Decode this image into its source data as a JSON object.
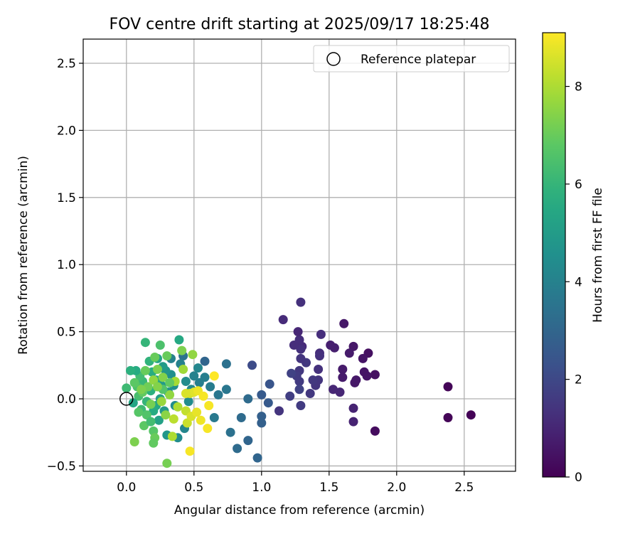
{
  "chart_data": {
    "type": "scatter",
    "title": "FOV centre drift starting at 2025/09/17 18:25:48",
    "xlabel": "Angular distance from reference (arcmin)",
    "ylabel": "Rotation from reference (arcmin)",
    "xlim": [
      -0.32,
      2.88
    ],
    "ylim": [
      -0.54,
      2.68
    ],
    "xticks": [
      "0.0",
      "0.5",
      "1.0",
      "1.5",
      "2.0",
      "2.5"
    ],
    "xtick_values": [
      0,
      0.5,
      1.0,
      1.5,
      2.0,
      2.5
    ],
    "yticks": [
      "−0.5",
      "0.0",
      "0.5",
      "1.0",
      "1.5",
      "2.0",
      "2.5"
    ],
    "ytick_values": [
      -0.5,
      0,
      0.5,
      1.0,
      1.5,
      2.0,
      2.5
    ],
    "grid": true,
    "legend": {
      "placement": "top-right",
      "entries": [
        "Reference platepar"
      ]
    },
    "reference_point": {
      "x": 0,
      "y": 0,
      "label": "Reference platepar"
    },
    "colorbar": {
      "label": "Hours from first FF file",
      "colormap": "viridis",
      "range": [
        0,
        9.1
      ],
      "ticks": [
        "0",
        "2",
        "4",
        "6",
        "8"
      ],
      "tick_values": [
        0,
        2,
        4,
        6,
        8
      ]
    },
    "points": [
      [
        2.38,
        0.09,
        0.1
      ],
      [
        2.38,
        -0.14,
        0.1
      ],
      [
        2.55,
        -0.12,
        0.05
      ],
      [
        1.84,
        -0.24,
        0.3
      ],
      [
        1.84,
        0.18,
        0.4
      ],
      [
        1.79,
        0.34,
        0.4
      ],
      [
        1.78,
        0.17,
        0.5
      ],
      [
        1.76,
        0.2,
        0.5
      ],
      [
        1.75,
        0.3,
        0.5
      ],
      [
        1.7,
        0.14,
        0.6
      ],
      [
        1.69,
        0.12,
        0.6
      ],
      [
        1.68,
        0.39,
        0.6
      ],
      [
        1.65,
        0.34,
        0.7
      ],
      [
        1.68,
        -0.07,
        0.9
      ],
      [
        1.68,
        -0.17,
        0.9
      ],
      [
        1.61,
        0.56,
        0.6
      ],
      [
        1.6,
        0.22,
        0.7
      ],
      [
        1.6,
        0.16,
        0.7
      ],
      [
        1.58,
        0.05,
        1.0
      ],
      [
        1.54,
        0.38,
        0.8
      ],
      [
        1.51,
        0.4,
        0.8
      ],
      [
        1.53,
        0.07,
        1.0
      ],
      [
        1.44,
        0.48,
        1.2
      ],
      [
        1.43,
        0.34,
        1.2
      ],
      [
        1.43,
        0.32,
        1.3
      ],
      [
        1.42,
        0.22,
        1.3
      ],
      [
        1.42,
        0.14,
        1.4
      ],
      [
        1.4,
        0.1,
        1.4
      ],
      [
        1.38,
        0.14,
        1.5
      ],
      [
        1.36,
        0.04,
        1.5
      ],
      [
        1.33,
        0.27,
        1.5
      ],
      [
        1.3,
        0.39,
        1.1
      ],
      [
        1.29,
        0.72,
        1.3
      ],
      [
        1.29,
        0.37,
        1.3
      ],
      [
        1.29,
        0.3,
        1.4
      ],
      [
        1.28,
        0.44,
        1.2
      ],
      [
        1.28,
        0.21,
        1.5
      ],
      [
        1.28,
        0.13,
        1.6
      ],
      [
        1.28,
        0.07,
        1.8
      ],
      [
        1.29,
        -0.05,
        1.6
      ],
      [
        1.27,
        0.5,
        1.0
      ],
      [
        1.26,
        0.17,
        1.6
      ],
      [
        1.24,
        0.4,
        1.2
      ],
      [
        1.22,
        0.19,
        1.8
      ],
      [
        1.21,
        0.02,
        1.7
      ],
      [
        1.16,
        0.59,
        1.1
      ],
      [
        1.13,
        -0.09,
        1.4
      ],
      [
        1.06,
        0.11,
        2.4
      ],
      [
        1.05,
        -0.03,
        2.6
      ],
      [
        1.0,
        0.03,
        2.6
      ],
      [
        1.0,
        -0.13,
        2.8
      ],
      [
        1.0,
        -0.18,
        2.8
      ],
      [
        0.97,
        -0.44,
        3.0
      ],
      [
        0.93,
        0.25,
        2.1
      ],
      [
        0.9,
        -0.31,
        3.0
      ],
      [
        0.9,
        0.0,
        3.2
      ],
      [
        0.85,
        -0.14,
        3.2
      ],
      [
        0.82,
        -0.37,
        3.2
      ],
      [
        0.77,
        -0.25,
        3.4
      ],
      [
        0.74,
        0.26,
        3.4
      ],
      [
        0.74,
        0.07,
        3.6
      ],
      [
        0.68,
        0.03,
        3.6
      ],
      [
        0.65,
        -0.14,
        3.7
      ],
      [
        0.62,
        0.09,
        3.8
      ],
      [
        0.58,
        0.28,
        3.0
      ],
      [
        0.58,
        0.16,
        3.9
      ],
      [
        0.54,
        0.12,
        3.9
      ],
      [
        0.53,
        0.23,
        4.2
      ],
      [
        0.5,
        0.17,
        4.0
      ],
      [
        0.48,
        0.07,
        4.3
      ],
      [
        0.46,
        -0.02,
        4.4
      ],
      [
        0.43,
        -0.22,
        4.2
      ],
      [
        0.44,
        0.13,
        4.4
      ],
      [
        0.42,
        0.32,
        3.5
      ],
      [
        0.4,
        0.26,
        4.0
      ],
      [
        0.38,
        -0.29,
        4.4
      ],
      [
        0.36,
        -0.05,
        4.4
      ],
      [
        0.35,
        0.1,
        4.5
      ],
      [
        0.33,
        0.3,
        4.0
      ],
      [
        0.33,
        0.18,
        4.5
      ],
      [
        0.31,
        0.05,
        4.6
      ],
      [
        0.3,
        -0.27,
        4.8
      ],
      [
        0.29,
        0.21,
        4.8
      ],
      [
        0.28,
        -0.09,
        4.9
      ],
      [
        0.27,
        0.24,
        5.0
      ],
      [
        0.26,
        0.1,
        5.0
      ],
      [
        0.25,
        0.0,
        5.1
      ],
      [
        0.24,
        -0.16,
        5.2
      ],
      [
        0.23,
        0.3,
        5.3
      ],
      [
        0.22,
        0.14,
        5.4
      ],
      [
        0.22,
        -0.05,
        5.5
      ],
      [
        0.2,
        -0.09,
        5.6
      ],
      [
        0.19,
        0.2,
        5.7
      ],
      [
        0.18,
        0.06,
        5.8
      ],
      [
        0.17,
        0.28,
        5.9
      ],
      [
        0.15,
        -0.02,
        6.0
      ],
      [
        0.14,
        0.42,
        6.0
      ],
      [
        0.12,
        0.13,
        6.1
      ],
      [
        0.11,
        -0.08,
        6.2
      ],
      [
        0.1,
        0.17,
        6.3
      ],
      [
        0.09,
        0.02,
        6.4
      ],
      [
        0.08,
        0.09,
        6.5
      ],
      [
        0.07,
        0.21,
        5.6
      ],
      [
        0.05,
        -0.03,
        5.4
      ],
      [
        0.03,
        0.21,
        5.8
      ],
      [
        0.06,
        0.12,
        6.8
      ],
      [
        0.09,
        -0.1,
        6.7
      ],
      [
        0.12,
        0.05,
        6.9
      ],
      [
        0.14,
        0.21,
        7.0
      ],
      [
        0.16,
        0.09,
        7.1
      ],
      [
        0.18,
        -0.04,
        7.2
      ],
      [
        0.2,
        -0.24,
        6.7
      ],
      [
        0.21,
        -0.29,
        7.0
      ],
      [
        0.2,
        -0.33,
        6.9
      ],
      [
        0.21,
        0.31,
        7.0
      ],
      [
        0.23,
        0.22,
        7.3
      ],
      [
        0.25,
        0.4,
        6.5
      ],
      [
        0.27,
        0.16,
        7.4
      ],
      [
        0.29,
        -0.12,
        7.5
      ],
      [
        0.3,
        0.32,
        7.0
      ],
      [
        0.32,
        0.03,
        7.6
      ],
      [
        0.34,
        -0.28,
        8.0
      ],
      [
        0.36,
        0.13,
        7.9
      ],
      [
        0.38,
        -0.06,
        8.0
      ],
      [
        0.39,
        0.44,
        5.5
      ],
      [
        0.41,
        0.36,
        7.3
      ],
      [
        0.42,
        0.22,
        7.8
      ],
      [
        0.44,
        -0.09,
        8.3
      ],
      [
        0.45,
        -0.18,
        8.4
      ],
      [
        0.47,
        0.04,
        8.5
      ],
      [
        0.48,
        -0.13,
        8.6
      ],
      [
        0.49,
        0.33,
        7.6
      ],
      [
        0.5,
        0.05,
        8.7
      ],
      [
        0.52,
        -0.1,
        8.8
      ],
      [
        0.53,
        0.06,
        8.9
      ],
      [
        0.55,
        -0.16,
        8.9
      ],
      [
        0.57,
        0.02,
        9.0
      ],
      [
        0.6,
        -0.22,
        9.0
      ],
      [
        0.61,
        -0.05,
        9.0
      ],
      [
        0.65,
        0.17,
        9.1
      ],
      [
        0.47,
        -0.39,
        9.0
      ],
      [
        0.3,
        -0.48,
        7.2
      ],
      [
        0.06,
        -0.32,
        7.3
      ],
      [
        0.0,
        0.08,
        6.2
      ],
      [
        0.13,
        -0.2,
        6.8
      ],
      [
        0.2,
        0.14,
        7.6
      ],
      [
        0.26,
        -0.02,
        7.7
      ],
      [
        0.35,
        -0.15,
        8.2
      ],
      [
        0.44,
        0.04,
        8.6
      ],
      [
        0.15,
        -0.12,
        6.6
      ],
      [
        0.32,
        0.12,
        6.9
      ],
      [
        0.18,
        -0.17,
        6.3
      ],
      [
        0.27,
        0.07,
        6.6
      ],
      [
        0.11,
        0.07,
        7.3
      ],
      [
        0.23,
        0.09,
        7.4
      ]
    ]
  }
}
